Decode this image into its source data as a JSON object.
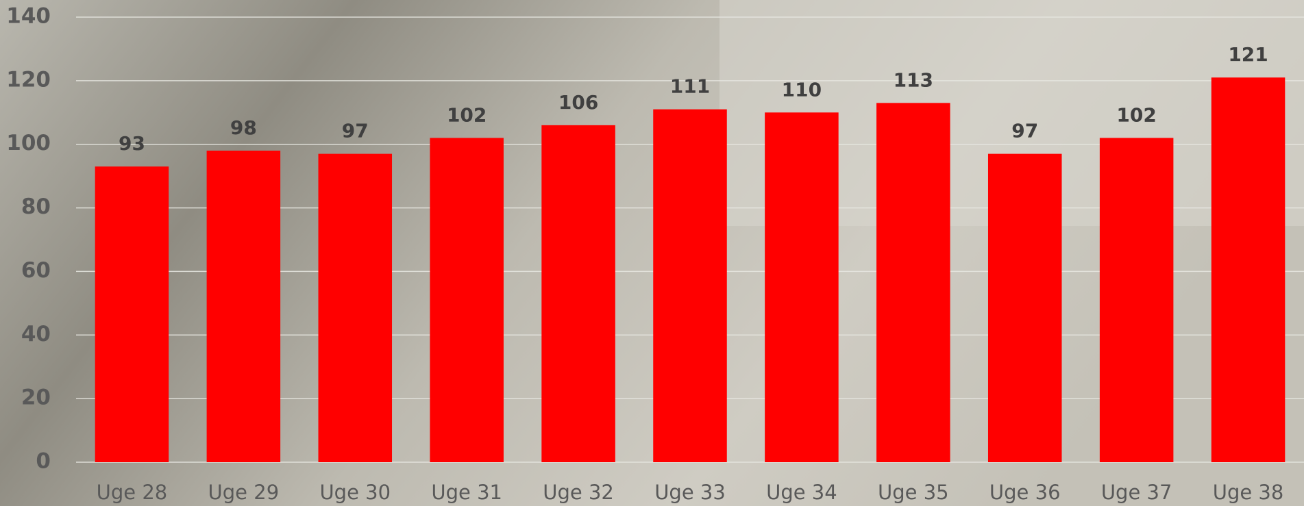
{
  "chart_data": {
    "type": "bar",
    "categories": [
      "Uge 28",
      "Uge 29",
      "Uge 30",
      "Uge 31",
      "Uge 32",
      "Uge 33",
      "Uge 34",
      "Uge 35",
      "Uge 36",
      "Uge 37",
      "Uge 38"
    ],
    "values": [
      93,
      98,
      97,
      102,
      106,
      111,
      110,
      113,
      97,
      102,
      121
    ],
    "color": "#ff0000",
    "ylim": [
      0,
      140
    ],
    "yticks": [
      0,
      20,
      40,
      60,
      80,
      100,
      120,
      140
    ],
    "grid": true
  }
}
